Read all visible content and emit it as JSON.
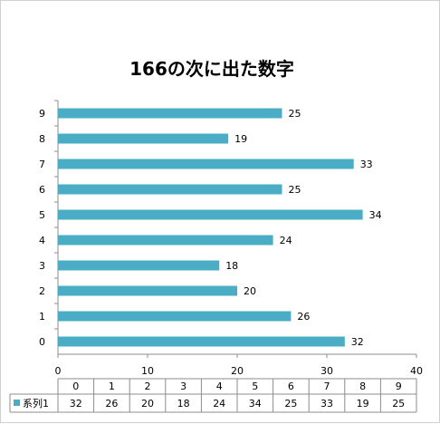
{
  "chart_data": {
    "type": "bar",
    "orientation": "horizontal",
    "title": "166の次に出た数字",
    "categories": [
      "0",
      "1",
      "2",
      "3",
      "4",
      "5",
      "6",
      "7",
      "8",
      "9"
    ],
    "series": [
      {
        "name": "系列1",
        "values": [
          32,
          26,
          20,
          18,
          24,
          34,
          25,
          33,
          19,
          25
        ]
      }
    ],
    "xlim": [
      0,
      40
    ],
    "x_ticks": [
      "0",
      "10",
      "20",
      "30",
      "40"
    ],
    "grid": false,
    "legend": "bottom-left (data table key)",
    "data_table": true,
    "colors": {
      "bar": "#4bacc6",
      "axis": "#8c8c8c",
      "table_line": "#8c8c8c"
    }
  }
}
